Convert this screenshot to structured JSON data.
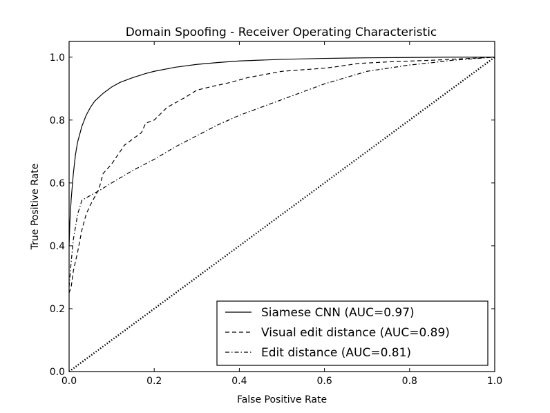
{
  "chart_data": {
    "type": "line",
    "title": "Domain Spoofing - Receiver Operating Characteristic",
    "xlabel": "False Positive Rate",
    "ylabel": "True Positive Rate",
    "xlim": [
      0.0,
      1.0
    ],
    "ylim": [
      0.0,
      1.05
    ],
    "xticks": [
      "0.0",
      "0.2",
      "0.4",
      "0.6",
      "0.8",
      "1.0"
    ],
    "yticks": [
      "0.0",
      "0.2",
      "0.4",
      "0.6",
      "0.8",
      "1.0"
    ],
    "grid": false,
    "legend_position": "lower-right",
    "series": [
      {
        "name": "Siamese CNN (AUC=0.97)",
        "style": "solid",
        "color": "#000000",
        "x": [
          0.0,
          0.002,
          0.005,
          0.01,
          0.015,
          0.02,
          0.03,
          0.04,
          0.05,
          0.06,
          0.08,
          0.1,
          0.12,
          0.15,
          0.18,
          0.2,
          0.25,
          0.3,
          0.35,
          0.4,
          0.5,
          0.6,
          0.7,
          0.8,
          0.9,
          1.0
        ],
        "y": [
          0.4,
          0.48,
          0.55,
          0.63,
          0.69,
          0.73,
          0.78,
          0.815,
          0.84,
          0.86,
          0.885,
          0.905,
          0.92,
          0.935,
          0.948,
          0.955,
          0.968,
          0.977,
          0.983,
          0.988,
          0.993,
          0.996,
          0.998,
          0.999,
          1.0,
          1.0
        ]
      },
      {
        "name": "Visual edit distance (AUC=0.89)",
        "style": "dashed",
        "color": "#000000",
        "x": [
          0.0,
          0.005,
          0.01,
          0.02,
          0.03,
          0.04,
          0.05,
          0.07,
          0.08,
          0.1,
          0.13,
          0.15,
          0.17,
          0.18,
          0.2,
          0.23,
          0.25,
          0.27,
          0.3,
          0.33,
          0.38,
          0.42,
          0.46,
          0.5,
          0.55,
          0.6,
          0.63,
          0.68,
          0.75,
          0.85,
          1.0
        ],
        "y": [
          0.25,
          0.27,
          0.32,
          0.38,
          0.45,
          0.5,
          0.53,
          0.58,
          0.63,
          0.66,
          0.72,
          0.74,
          0.76,
          0.79,
          0.8,
          0.84,
          0.855,
          0.87,
          0.895,
          0.905,
          0.92,
          0.935,
          0.945,
          0.955,
          0.96,
          0.965,
          0.97,
          0.98,
          0.985,
          0.99,
          1.0
        ]
      },
      {
        "name": "Edit distance (AUC=0.81)",
        "style": "dashdot",
        "color": "#000000",
        "x": [
          0.0,
          0.005,
          0.01,
          0.02,
          0.03,
          0.05,
          0.07,
          0.1,
          0.15,
          0.2,
          0.25,
          0.3,
          0.35,
          0.4,
          0.45,
          0.5,
          0.55,
          0.6,
          0.65,
          0.7,
          0.75,
          0.8,
          0.85,
          0.9,
          0.95,
          1.0
        ],
        "y": [
          0.27,
          0.35,
          0.42,
          0.5,
          0.545,
          0.56,
          0.575,
          0.6,
          0.64,
          0.675,
          0.715,
          0.75,
          0.785,
          0.815,
          0.84,
          0.865,
          0.89,
          0.915,
          0.935,
          0.955,
          0.965,
          0.975,
          0.982,
          0.99,
          0.995,
          1.0
        ]
      },
      {
        "name": "",
        "style": "dotted",
        "color": "#000000",
        "x": [
          0.0,
          1.0
        ],
        "y": [
          0.0,
          1.0
        ]
      }
    ]
  }
}
